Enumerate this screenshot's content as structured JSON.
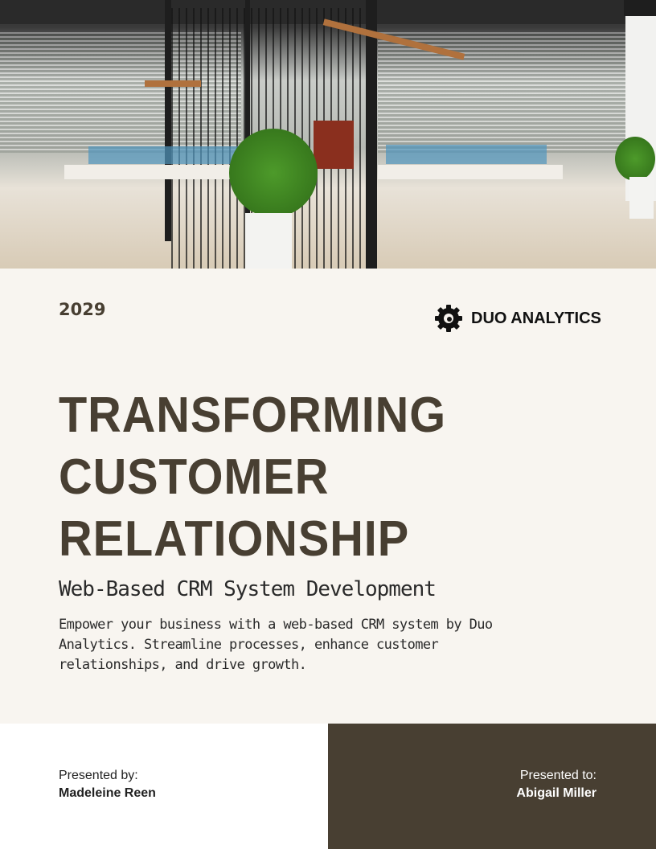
{
  "cover_image": {
    "description_icon": "office-photo"
  },
  "year": "2029",
  "logo": {
    "icon": "gear-icon",
    "name": "DUO ANALYTICS"
  },
  "title_lines": [
    "TRANSFORMING",
    "CUSTOMER",
    "RELATIONSHIP"
  ],
  "subtitle": "Web-Based CRM System Development",
  "description": "Empower your business with a web-based CRM system by Duo Analytics. Streamline processes, enhance customer relationships, and drive growth.",
  "presented_by": {
    "label": "Presented by:",
    "name": "Madeleine Reen"
  },
  "presented_to": {
    "label": "Presented to:",
    "name": "Abigail Miller"
  },
  "colors": {
    "background": "#f8f5f0",
    "dark": "#483f32",
    "text": "#483f32"
  }
}
